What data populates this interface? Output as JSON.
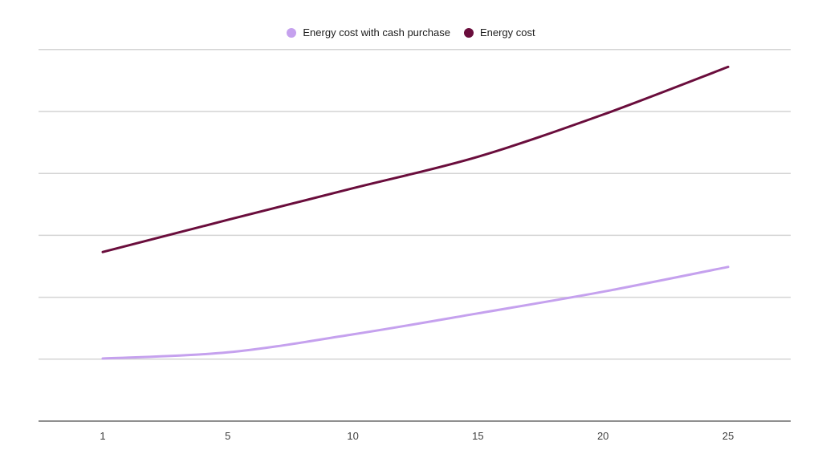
{
  "legend": {
    "items": [
      {
        "label": "Energy cost with cash purchase",
        "color": "#c5a1ee"
      },
      {
        "label": "Energy cost",
        "color": "#6a0d3c"
      }
    ]
  },
  "chart_data": {
    "type": "line",
    "title": "",
    "xlabel": "",
    "ylabel": "",
    "x": [
      1,
      5,
      10,
      15,
      20,
      25
    ],
    "x_tick_labels": [
      "1",
      "5",
      "10",
      "15",
      "20",
      "25"
    ],
    "series": [
      {
        "name": "Energy cost with cash purchase",
        "color": "#c5a1ee",
        "values": [
          1.01,
          1.11,
          1.4,
          1.74,
          2.09,
          2.49
        ]
      },
      {
        "name": "Energy cost",
        "color": "#6a0d3c",
        "values": [
          2.73,
          3.25,
          3.76,
          4.27,
          4.95,
          5.72
        ]
      }
    ],
    "ylim": [
      0,
      6
    ],
    "y_axis_labels_visible": false,
    "y_unit_note": "y-axis unlabeled; values estimated in gridline intervals above baseline",
    "grid": "horizontal",
    "gridline_count": 6,
    "legend_position": "top-center",
    "line_shape": "smooth",
    "colors": {
      "background": "#ffffff",
      "gridline": "#d4d4d4",
      "axis_line": "#8f8f8f",
      "tick_label": "#3e3e3e"
    }
  }
}
